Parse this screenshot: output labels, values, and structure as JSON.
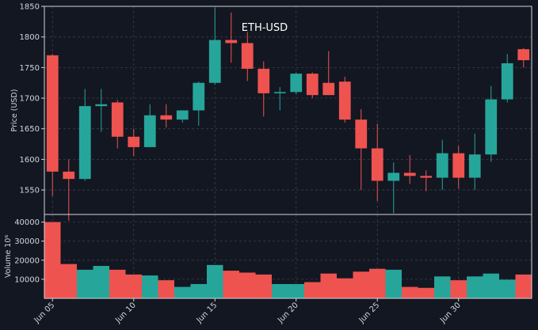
{
  "chart_data": {
    "type": "candlestick",
    "title": "ETH-USD",
    "ylabel": "Price (USD)",
    "volume_label": "Volume  10⁶",
    "ylim": [
      1510,
      1850
    ],
    "volume_ylim": [
      0,
      44000
    ],
    "yticks": [
      1550,
      1600,
      1650,
      1700,
      1750,
      1800,
      1850
    ],
    "volume_yticks": [
      10000,
      20000,
      30000,
      40000
    ],
    "x_tick_labels": [
      {
        "index": 0,
        "label": "Jun 05"
      },
      {
        "index": 5,
        "label": "Jun 10"
      },
      {
        "index": 10,
        "label": "Jun 15"
      },
      {
        "index": 15,
        "label": "Jun 20"
      },
      {
        "index": 20,
        "label": "Jun 25"
      },
      {
        "index": 25,
        "label": "Jun 30"
      }
    ],
    "grid": true,
    "colors": {
      "up": "#26a69a",
      "down": "#ef5350",
      "background": "#131722",
      "grid": "#3a3f4b"
    },
    "dates": [
      "Jun 05",
      "Jun 06",
      "Jun 07",
      "Jun 08",
      "Jun 09",
      "Jun 10",
      "Jun 11",
      "Jun 12",
      "Jun 13",
      "Jun 14",
      "Jun 15",
      "Jun 16",
      "Jun 17",
      "Jun 18",
      "Jun 19",
      "Jun 20",
      "Jun 21",
      "Jun 22",
      "Jun 23",
      "Jun 24",
      "Jun 25",
      "Jun 26",
      "Jun 27",
      "Jun 28",
      "Jun 29",
      "Jun 30",
      "Jul 01",
      "Jul 02",
      "Jul 03",
      "Jul 04"
    ],
    "open": [
      1770,
      1580,
      1568,
      1687,
      1693,
      1637,
      1620,
      1672,
      1665,
      1680,
      1725,
      1795,
      1790,
      1748,
      1708,
      1710,
      1740,
      1725,
      1727,
      1665,
      1618,
      1565,
      1578,
      1573,
      1570,
      1610,
      1570,
      1608,
      1698,
      1780
    ],
    "high": [
      1772,
      1600,
      1715,
      1715,
      1697,
      1650,
      1690,
      1690,
      1677,
      1727,
      1848,
      1840,
      1808,
      1760,
      1718,
      1742,
      1742,
      1777,
      1735,
      1682,
      1658,
      1595,
      1607,
      1582,
      1632,
      1622,
      1642,
      1720,
      1772,
      1782
    ],
    "low": [
      1540,
      1500,
      1565,
      1645,
      1618,
      1605,
      1620,
      1652,
      1660,
      1655,
      1722,
      1758,
      1728,
      1670,
      1680,
      1706,
      1700,
      1705,
      1660,
      1550,
      1532,
      1512,
      1560,
      1548,
      1550,
      1552,
      1550,
      1596,
      1693,
      1750
    ],
    "close": [
      1580,
      1568,
      1687,
      1690,
      1637,
      1620,
      1672,
      1665,
      1680,
      1725,
      1795,
      1790,
      1748,
      1708,
      1710,
      1740,
      1705,
      1705,
      1665,
      1618,
      1565,
      1578,
      1573,
      1570,
      1610,
      1570,
      1608,
      1698,
      1757,
      1762
    ],
    "volume": [
      40000,
      18000,
      15000,
      17000,
      15000,
      12500,
      12000,
      9500,
      6000,
      7500,
      17500,
      14500,
      13500,
      12500,
      7500,
      7500,
      8500,
      13000,
      10500,
      14000,
      15500,
      15000,
      6000,
      5500,
      11500,
      9500,
      11500,
      13000,
      9800,
      12500
    ]
  }
}
